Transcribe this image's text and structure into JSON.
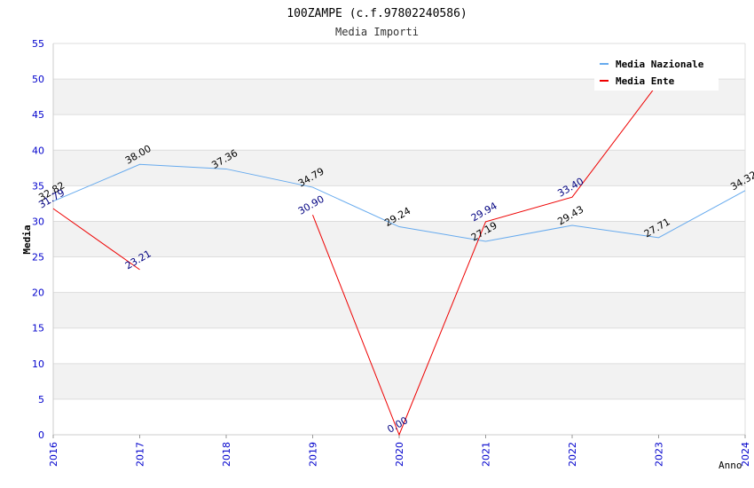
{
  "chart_data": {
    "type": "line",
    "title": "100ZAMPE (c.f.97802240586)",
    "subtitle": "Media Importi",
    "xlabel": "Anno",
    "ylabel": "Media",
    "ylim": [
      0,
      55
    ],
    "yticks": [
      0,
      5,
      10,
      15,
      20,
      25,
      30,
      35,
      40,
      45,
      50,
      55
    ],
    "x": [
      "2016",
      "2017",
      "2018",
      "2019",
      "2020",
      "2021",
      "2022",
      "2023",
      "2024"
    ],
    "legend_position": "top-right",
    "grid": "horizontal alternating bands",
    "series": [
      {
        "name": "Media Nazionale",
        "color": "#66aaee",
        "label_color": "#000000",
        "values": [
          32.82,
          38.0,
          37.36,
          34.79,
          29.24,
          27.19,
          29.43,
          27.71,
          34.32
        ],
        "labels": [
          "32.82",
          "38.00",
          "37.36",
          "34.79",
          "29.24",
          "27.19",
          "29.43",
          "27.71",
          "34.32"
        ]
      },
      {
        "name": "Media Ente",
        "color": "#ee0000",
        "label_color": "#000080",
        "values": [
          31.79,
          23.21,
          null,
          30.9,
          0.0,
          29.94,
          33.4,
          49.5,
          null
        ],
        "labels": [
          "31.79",
          "23.21",
          "",
          "30.90",
          "0.00",
          "29.94",
          "33.40",
          "",
          ""
        ]
      }
    ]
  }
}
